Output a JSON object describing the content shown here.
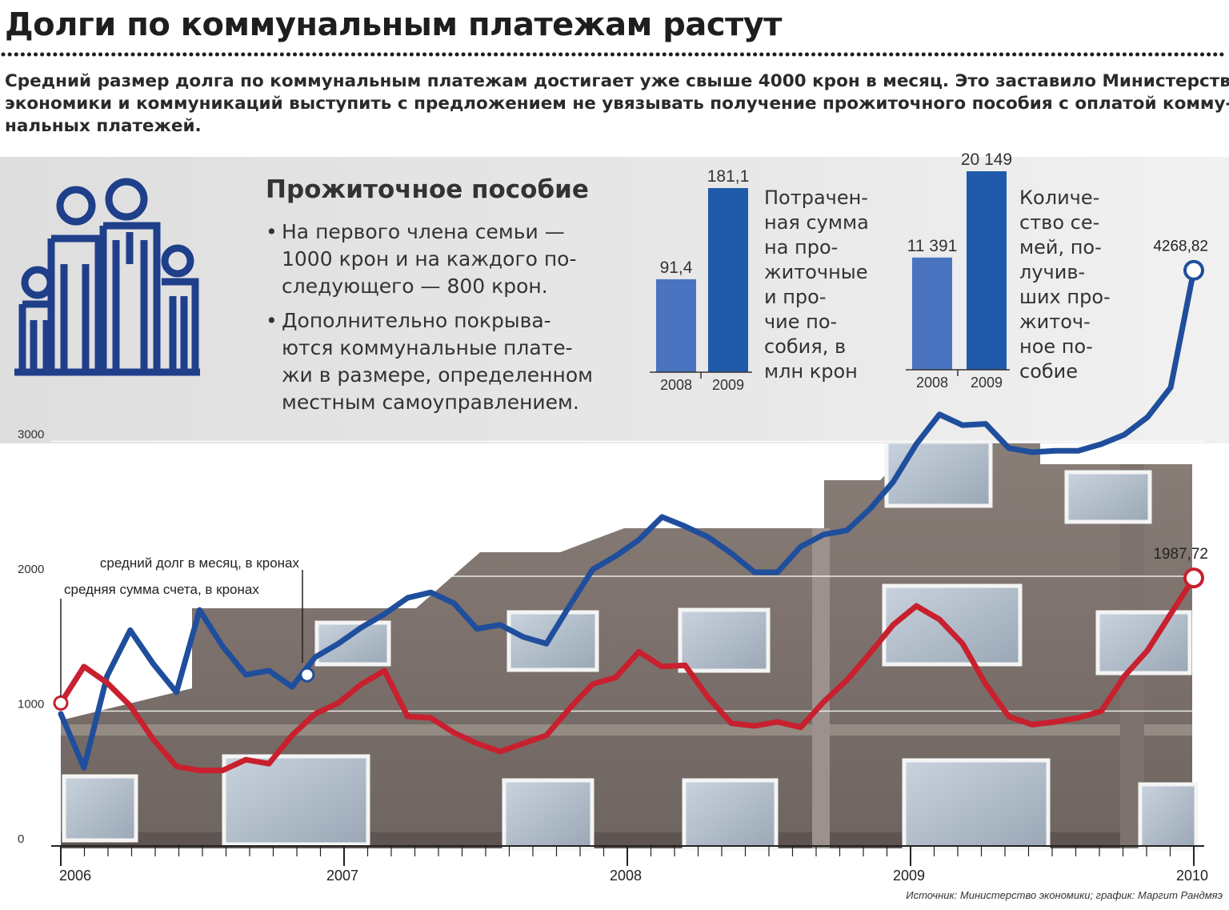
{
  "title": "Долги по коммунальным платежам растут",
  "lead_lines": [
    "Средний размер долга по коммунальным платежам достигает уже свыше 4000 крон в месяц. Это заставило Министерство",
    "экономики и коммуникаций выступить с предложением не увязывать получение прожиточного пособия с оплатой комму-",
    "нальных платежей."
  ],
  "allowance": {
    "heading": "Прожиточное пособие",
    "bullets": [
      {
        "lines": [
          "На первого члена семьи —",
          "1000 крон и на каждого по-",
          "следующего — 800 крон."
        ]
      },
      {
        "lines": [
          "Дополнительно покрыва-",
          "ются коммунальные плате-",
          "жи в размере, определенном",
          "местным самоуправлением."
        ]
      }
    ]
  },
  "bar_charts": [
    {
      "type": "bar",
      "categories": [
        "2008",
        "2009"
      ],
      "values": [
        91.4,
        181.1
      ],
      "value_labels": [
        "91,4",
        "181,1"
      ],
      "colors": [
        "#4a74c0",
        "#1f5aab"
      ],
      "description_lines": [
        "Потрачен-",
        "ная сумма",
        "на про-",
        "житочные",
        "и про-",
        "чие по-",
        "собия, в",
        "млн крон"
      ]
    },
    {
      "type": "bar",
      "categories": [
        "2008",
        "2009"
      ],
      "values": [
        11391,
        20149
      ],
      "value_labels": [
        "11 391",
        "20 149"
      ],
      "colors": [
        "#4a74c0",
        "#1f5aab"
      ],
      "description_lines": [
        "Количе-",
        "ство се-",
        "мей, по-",
        "лучив-",
        "ших про-",
        "житоч-",
        "ное по-",
        "собие"
      ]
    }
  ],
  "chart_data": {
    "type": "line",
    "x_ticks": [
      "2006",
      "2007",
      "2008",
      "2009",
      "2010"
    ],
    "y_ticks": [
      "0",
      "1000",
      "2000",
      "3000"
    ],
    "ylim": [
      0,
      3000
    ],
    "grid": true,
    "series": [
      {
        "name": "средний долг в месяц, в кронах",
        "color": "#1f4e9c",
        "values": [
          980,
          580,
          1260,
          1600,
          1350,
          1140,
          1750,
          1480,
          1270,
          1300,
          1180,
          1400,
          1500,
          1620,
          1720,
          1840,
          1880,
          1800,
          1610,
          1640,
          1550,
          1500,
          1780,
          2050,
          2150,
          2270,
          2440,
          2370,
          2290,
          2170,
          2030,
          2030,
          2220,
          2310,
          2340,
          2500,
          2700,
          2980,
          3200,
          3120,
          3130,
          2950,
          2920,
          2930,
          2930,
          2980,
          3050,
          3180,
          3400,
          4268.82
        ],
        "end_label": "4268,82"
      },
      {
        "name": "средняя сумма счета, в кронах",
        "color": "#c8202e",
        "values": [
          1060,
          1330,
          1210,
          1040,
          790,
          590,
          560,
          560,
          640,
          610,
          820,
          980,
          1060,
          1200,
          1300,
          960,
          950,
          840,
          760,
          700,
          760,
          820,
          1020,
          1200,
          1250,
          1440,
          1330,
          1340,
          1100,
          910,
          890,
          920,
          880,
          1070,
          1230,
          1430,
          1640,
          1780,
          1680,
          1500,
          1200,
          960,
          900,
          920,
          950,
          1000,
          1260,
          1450,
          1720,
          1987.72
        ],
        "end_label": "1987,72"
      }
    ]
  },
  "source": "Источник: Министерство экономики; график: Маргит Рандмяэ"
}
